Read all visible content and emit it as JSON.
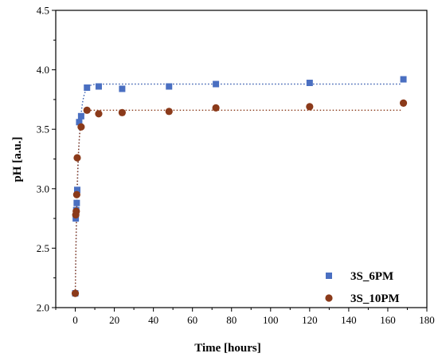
{
  "chart_data": {
    "type": "scatter",
    "xlabel": "Time [hours]",
    "ylabel": "pH [a.u.]",
    "xlim": [
      -10,
      180
    ],
    "ylim": [
      2.0,
      4.5
    ],
    "xticks": [
      0,
      20,
      40,
      60,
      80,
      100,
      120,
      140,
      160,
      180
    ],
    "yticks": [
      2.0,
      2.5,
      3.0,
      3.5,
      4.0,
      4.5
    ],
    "grid": false,
    "legend_position": "bottom-right",
    "series": [
      {
        "name": "3S_6PM",
        "marker": "square",
        "color": "#4a6fc1",
        "fit_color": "#3a5fb0",
        "fit": {
          "plateau": 3.88,
          "start": 2.12,
          "rate": 0.65
        },
        "points": [
          {
            "x": 0,
            "y": 2.12
          },
          {
            "x": 0.25,
            "y": 2.75
          },
          {
            "x": 0.5,
            "y": 2.82
          },
          {
            "x": 0.75,
            "y": 2.88
          },
          {
            "x": 1,
            "y": 2.99
          },
          {
            "x": 2,
            "y": 3.56
          },
          {
            "x": 3,
            "y": 3.61
          },
          {
            "x": 6,
            "y": 3.85
          },
          {
            "x": 12,
            "y": 3.86
          },
          {
            "x": 24,
            "y": 3.84
          },
          {
            "x": 48,
            "y": 3.86
          },
          {
            "x": 72,
            "y": 3.88
          },
          {
            "x": 120,
            "y": 3.89
          },
          {
            "x": 168,
            "y": 3.92
          }
        ]
      },
      {
        "name": "3S_10PM",
        "marker": "circle",
        "color": "#8b3a1a",
        "fit_color": "#8b3a1a",
        "fit": {
          "plateau": 3.66,
          "start": 2.12,
          "rate": 0.9
        },
        "points": [
          {
            "x": 0,
            "y": 2.12
          },
          {
            "x": 0.25,
            "y": 2.78
          },
          {
            "x": 0.5,
            "y": 2.81
          },
          {
            "x": 0.75,
            "y": 2.95
          },
          {
            "x": 1,
            "y": 3.26
          },
          {
            "x": 3,
            "y": 3.52
          },
          {
            "x": 6,
            "y": 3.66
          },
          {
            "x": 12,
            "y": 3.63
          },
          {
            "x": 24,
            "y": 3.64
          },
          {
            "x": 48,
            "y": 3.65
          },
          {
            "x": 72,
            "y": 3.68
          },
          {
            "x": 120,
            "y": 3.69
          },
          {
            "x": 168,
            "y": 3.72
          }
        ]
      }
    ]
  }
}
